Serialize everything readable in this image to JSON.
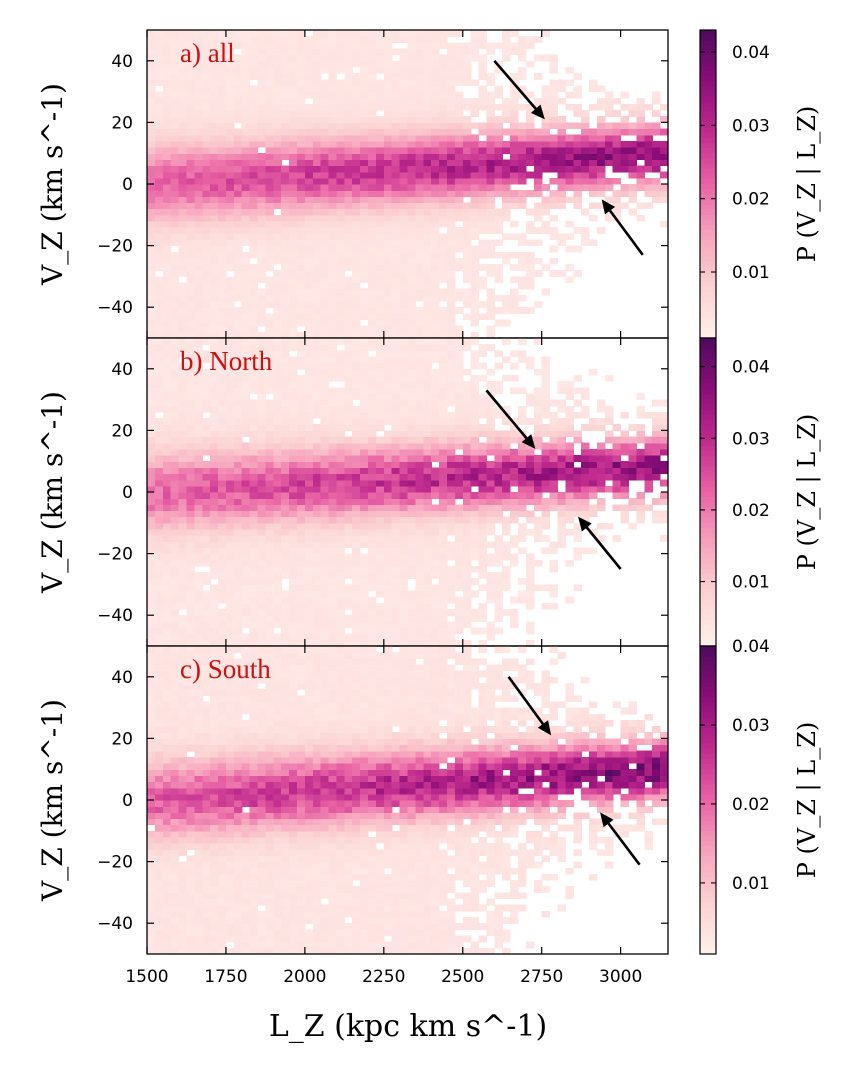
{
  "chart_data": {
    "type": "heatmap",
    "description": "Conditional probability P(Vz | Lz) histograms for three samples",
    "xlabel": "L_Z (kpc km s^-1)",
    "ylabel": "V_Z (km s^-1)",
    "colorbar_label": "P (V_Z | L_Z)",
    "xlim": [
      1500,
      3150
    ],
    "ylim": [
      -50,
      50
    ],
    "xticks": [
      1500,
      1750,
      2000,
      2250,
      2500,
      2750,
      3000
    ],
    "xtick_labels": [
      "1500",
      "1750",
      "2000",
      "2250",
      "2500",
      "2750",
      "3000"
    ],
    "yticks": [
      -40,
      -20,
      0,
      20,
      40
    ],
    "ytick_labels": [
      "−40",
      "−20",
      "0",
      "20",
      "40"
    ],
    "colormap": [
      "#fff0ec",
      "#fbd2d2",
      "#f7a3bd",
      "#e863a4",
      "#c02b8e",
      "#8c0d78",
      "#4e0a5e"
    ],
    "label_color": "#cc1111",
    "panels": [
      {
        "label": "a) all",
        "cbar_ticks": [
          0.01,
          0.02,
          0.03,
          0.04
        ],
        "cbar_tick_labels": [
          "0.01",
          "0.02",
          "0.03",
          "0.04"
        ],
        "cbar_range": [
          0.001,
          0.043
        ],
        "ridge_slope_per_1000": 6,
        "ridge_width": 8.5,
        "peak": 0.033,
        "noise": 0.13,
        "seed": 11,
        "arrows": [
          {
            "from": [
              2600,
              40
            ],
            "to": [
              2760,
              21
            ]
          },
          {
            "from": [
              3070,
              -23
            ],
            "to": [
              2940,
              -5
            ]
          }
        ]
      },
      {
        "label": "b) North",
        "cbar_ticks": [
          0.01,
          0.02,
          0.03,
          0.04
        ],
        "cbar_tick_labels": [
          "0.01",
          "0.02",
          "0.03",
          "0.04"
        ],
        "cbar_range": [
          0.001,
          0.044
        ],
        "ridge_slope_per_1000": 5,
        "ridge_width": 8.5,
        "peak": 0.033,
        "noise": 0.17,
        "seed": 23,
        "arrows": [
          {
            "from": [
              2575,
              33
            ],
            "to": [
              2730,
              14
            ]
          },
          {
            "from": [
              3000,
              -25
            ],
            "to": [
              2865,
              -8
            ]
          }
        ]
      },
      {
        "label": "c) South",
        "cbar_ticks": [
          0.01,
          0.02,
          0.03,
          0.04
        ],
        "cbar_tick_labels": [
          "0.01",
          "0.02",
          "0.03",
          "0.04"
        ],
        "cbar_range": [
          0.001,
          0.04
        ],
        "ridge_slope_per_1000": 6,
        "ridge_width": 8.5,
        "peak": 0.032,
        "noise": 0.17,
        "seed": 37,
        "arrows": [
          {
            "from": [
              2645,
              40
            ],
            "to": [
              2780,
              21
            ]
          },
          {
            "from": [
              3060,
              -21
            ],
            "to": [
              2935,
              -4
            ]
          }
        ]
      }
    ]
  }
}
